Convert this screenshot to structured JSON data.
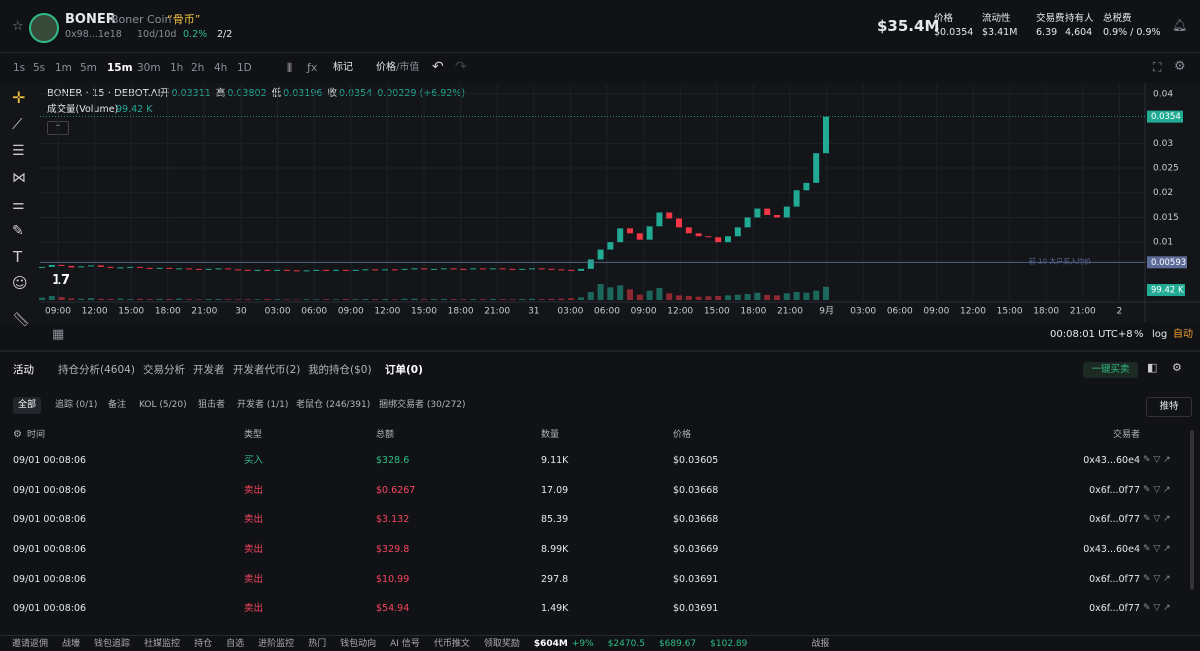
{
  "header": {
    "name": "BONER",
    "full_name": "Boner Coin",
    "cn_name": "“骨币”",
    "address": "0x98...1e18",
    "age": "10d/10d",
    "pct": "0.2%",
    "ratio": "2/2",
    "market_cap": "$35.4M",
    "stats": [
      {
        "label": "价格",
        "value": "$0.0354"
      },
      {
        "label": "流动性",
        "value": "$3.41M"
      },
      {
        "label": "交易费",
        "value": "6.39"
      },
      {
        "label": "持有人",
        "value": "4,604"
      },
      {
        "label": "总税费",
        "value": "0.9% / 0.9%"
      }
    ]
  },
  "toolbar": {
    "intervals": [
      "1s",
      "5s",
      "1m",
      "5m",
      "15m",
      "30m",
      "1h",
      "2h",
      "4h",
      "1D"
    ],
    "active_interval": 4,
    "fx": "ƒx",
    "markers": "标记",
    "price": "价格",
    "mcap": "/市值"
  },
  "chart_data": {
    "type": "candlestick",
    "legend": "BONER · 15 · DEBOT.AI",
    "ohlc": [
      {
        "label": "开",
        "value": "0.03311"
      },
      {
        "label": "高",
        "value": "0.03802"
      },
      {
        "label": "低",
        "value": "0.03196"
      },
      {
        "label": "收",
        "value": "0.0354"
      }
    ],
    "change": "0.00229 (+6.92%)",
    "volume_label": "成交量(Volume)",
    "volume_value": "99.42 K",
    "categories": [
      "09:00",
      "12:00",
      "15:00",
      "18:00",
      "21:00",
      "30",
      "03:00",
      "06:00",
      "09:00",
      "12:00",
      "15:00",
      "18:00",
      "21:00",
      "31",
      "03:00",
      "06:00",
      "09:00",
      "12:00",
      "15:00",
      "18:00",
      "21:00",
      "9月",
      "03:00",
      "06:00",
      "09:00",
      "12:00",
      "15:00",
      "18:00",
      "21:00",
      "2"
    ],
    "closes": [
      0.005,
      0.0054,
      0.0052,
      0.0049,
      0.0051,
      0.0053,
      0.005,
      0.0048,
      0.0049,
      0.005,
      0.0048,
      0.0047,
      0.0048,
      0.0046,
      0.0047,
      0.0046,
      0.0045,
      0.0046,
      0.0047,
      0.0045,
      0.0044,
      0.0043,
      0.0044,
      0.0043,
      0.0044,
      0.0043,
      0.0042,
      0.0043,
      0.0044,
      0.0043,
      0.0044,
      0.0043,
      0.0044,
      0.0045,
      0.0044,
      0.0045,
      0.0044,
      0.0046,
      0.0047,
      0.0045,
      0.0046,
      0.0047,
      0.0046,
      0.0045,
      0.0047,
      0.0046,
      0.0047,
      0.0046,
      0.0045,
      0.0046,
      0.0047,
      0.0046,
      0.0045,
      0.0044,
      0.0042,
      0.0046,
      0.0065,
      0.0085,
      0.01,
      0.0128,
      0.0118,
      0.0105,
      0.0132,
      0.016,
      0.0148,
      0.013,
      0.0118,
      0.0112,
      0.011,
      0.01,
      0.0112,
      0.013,
      0.015,
      0.0168,
      0.0155,
      0.015,
      0.0172,
      0.0205,
      0.022,
      0.028,
      0.0354
    ],
    "volumes": [
      18,
      30,
      22,
      12,
      10,
      14,
      9,
      8,
      11,
      7,
      9,
      6,
      8,
      7,
      10,
      6,
      5,
      7,
      8,
      6,
      5,
      6,
      5,
      7,
      6,
      5,
      4,
      6,
      5,
      6,
      5,
      7,
      6,
      8,
      6,
      7,
      5,
      9,
      10,
      6,
      7,
      8,
      6,
      5,
      7,
      6,
      8,
      6,
      5,
      7,
      9,
      6,
      8,
      10,
      14,
      20,
      60,
      120,
      95,
      110,
      80,
      40,
      70,
      90,
      50,
      35,
      30,
      25,
      28,
      30,
      35,
      40,
      45,
      55,
      38,
      35,
      50,
      60,
      55,
      70,
      99.42
    ],
    "ylim": [
      -0.0017,
      0.0418
    ],
    "yticks": [
      0.01,
      0.015,
      0.02,
      0.025,
      0.03,
      0.04
    ],
    "vlim": [
      0,
      300
    ],
    "up_color": "#22ab94",
    "down_color": "#f23645",
    "price_line": {
      "value": 0.0354,
      "label": "0.0354"
    },
    "holder_line": {
      "value": 0.00593,
      "label": "0.00593",
      "text": "前 10 大户买入均价"
    },
    "volume_tag": "99.42 K",
    "clock": "00:08:01 UTC+8",
    "pct": "%",
    "log": "log",
    "auto": "自动"
  },
  "panel": {
    "tabs": [
      "活动",
      "持仓分析(4604)",
      "交易分析",
      "开发者",
      "开发者代币(2)",
      "我的持仓($0)",
      "订单(0)"
    ],
    "quick_trade": "一键买卖",
    "filters": [
      "全部",
      "追踪 (0/1)",
      "备注",
      "KOL (5/20)",
      "狙击者",
      "开发者 (1/1)",
      "老鼠仓 (246/391)",
      "捆绑交易者 (30/272)"
    ],
    "twitter": "推特",
    "columns": [
      "时间",
      "类型",
      "总额",
      "数量",
      "价格",
      "交易者"
    ],
    "rows": [
      [
        "09/01 00:08:06",
        "买入",
        "$328.6",
        "9.11K",
        "$0.03605",
        "0x43...60e4"
      ],
      [
        "09/01 00:08:06",
        "卖出",
        "$0.6267",
        "17.09",
        "$0.03668",
        "0x6f...0f77"
      ],
      [
        "09/01 00:08:06",
        "卖出",
        "$3.132",
        "85.39",
        "$0.03668",
        "0x6f...0f77"
      ],
      [
        "09/01 00:08:06",
        "卖出",
        "$329.8",
        "8.99K",
        "$0.03669",
        "0x43...60e4"
      ],
      [
        "09/01 00:08:06",
        "卖出",
        "$10.99",
        "297.8",
        "$0.03691",
        "0x6f...0f77"
      ],
      [
        "09/01 00:08:06",
        "卖出",
        "$54.94",
        "1.49K",
        "$0.03691",
        "0x6f...0f77"
      ]
    ]
  },
  "footer": {
    "items": [
      "邀请返佣",
      "战壕",
      "钱包追踪",
      "社媒监控",
      "持仓",
      "自选",
      "进阶监控",
      "热门",
      "钱包动向",
      "AI 信号",
      "代币推文",
      "领取奖励"
    ],
    "volume": "$604M",
    "volume_change": "+9%",
    "prices": [
      "$2470.5",
      "$689.67",
      "$102.89"
    ],
    "report": "战报"
  }
}
